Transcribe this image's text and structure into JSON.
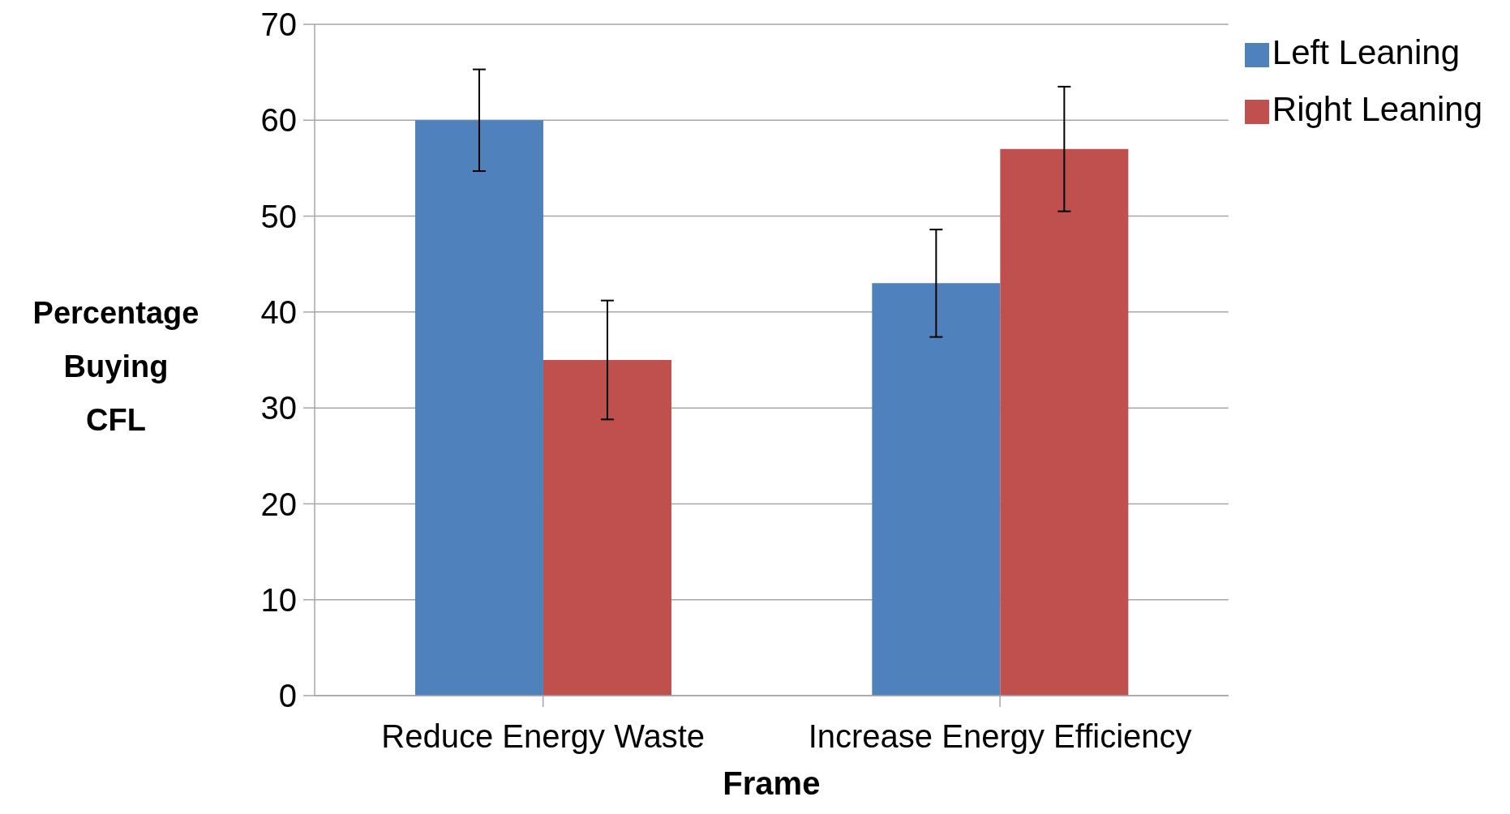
{
  "chart_data": {
    "type": "bar",
    "xlabel": "Frame",
    "ylabel": "Percentage Buying CFL",
    "categories": [
      "Reduce Energy Waste",
      "Increase Energy Efficiency"
    ],
    "series": [
      {
        "name": "Left Leaning",
        "color": "#4f81bd",
        "values": [
          60,
          43
        ],
        "errors": [
          5.3,
          5.6
        ]
      },
      {
        "name": "Right Leaning",
        "color": "#c0504d",
        "values": [
          35,
          57
        ],
        "errors": [
          6.2,
          6.5
        ]
      }
    ],
    "ylim": [
      0,
      70
    ],
    "yticks": [
      0,
      10,
      20,
      30,
      40,
      50,
      60,
      70
    ],
    "grid": "y",
    "legend": "top right"
  }
}
